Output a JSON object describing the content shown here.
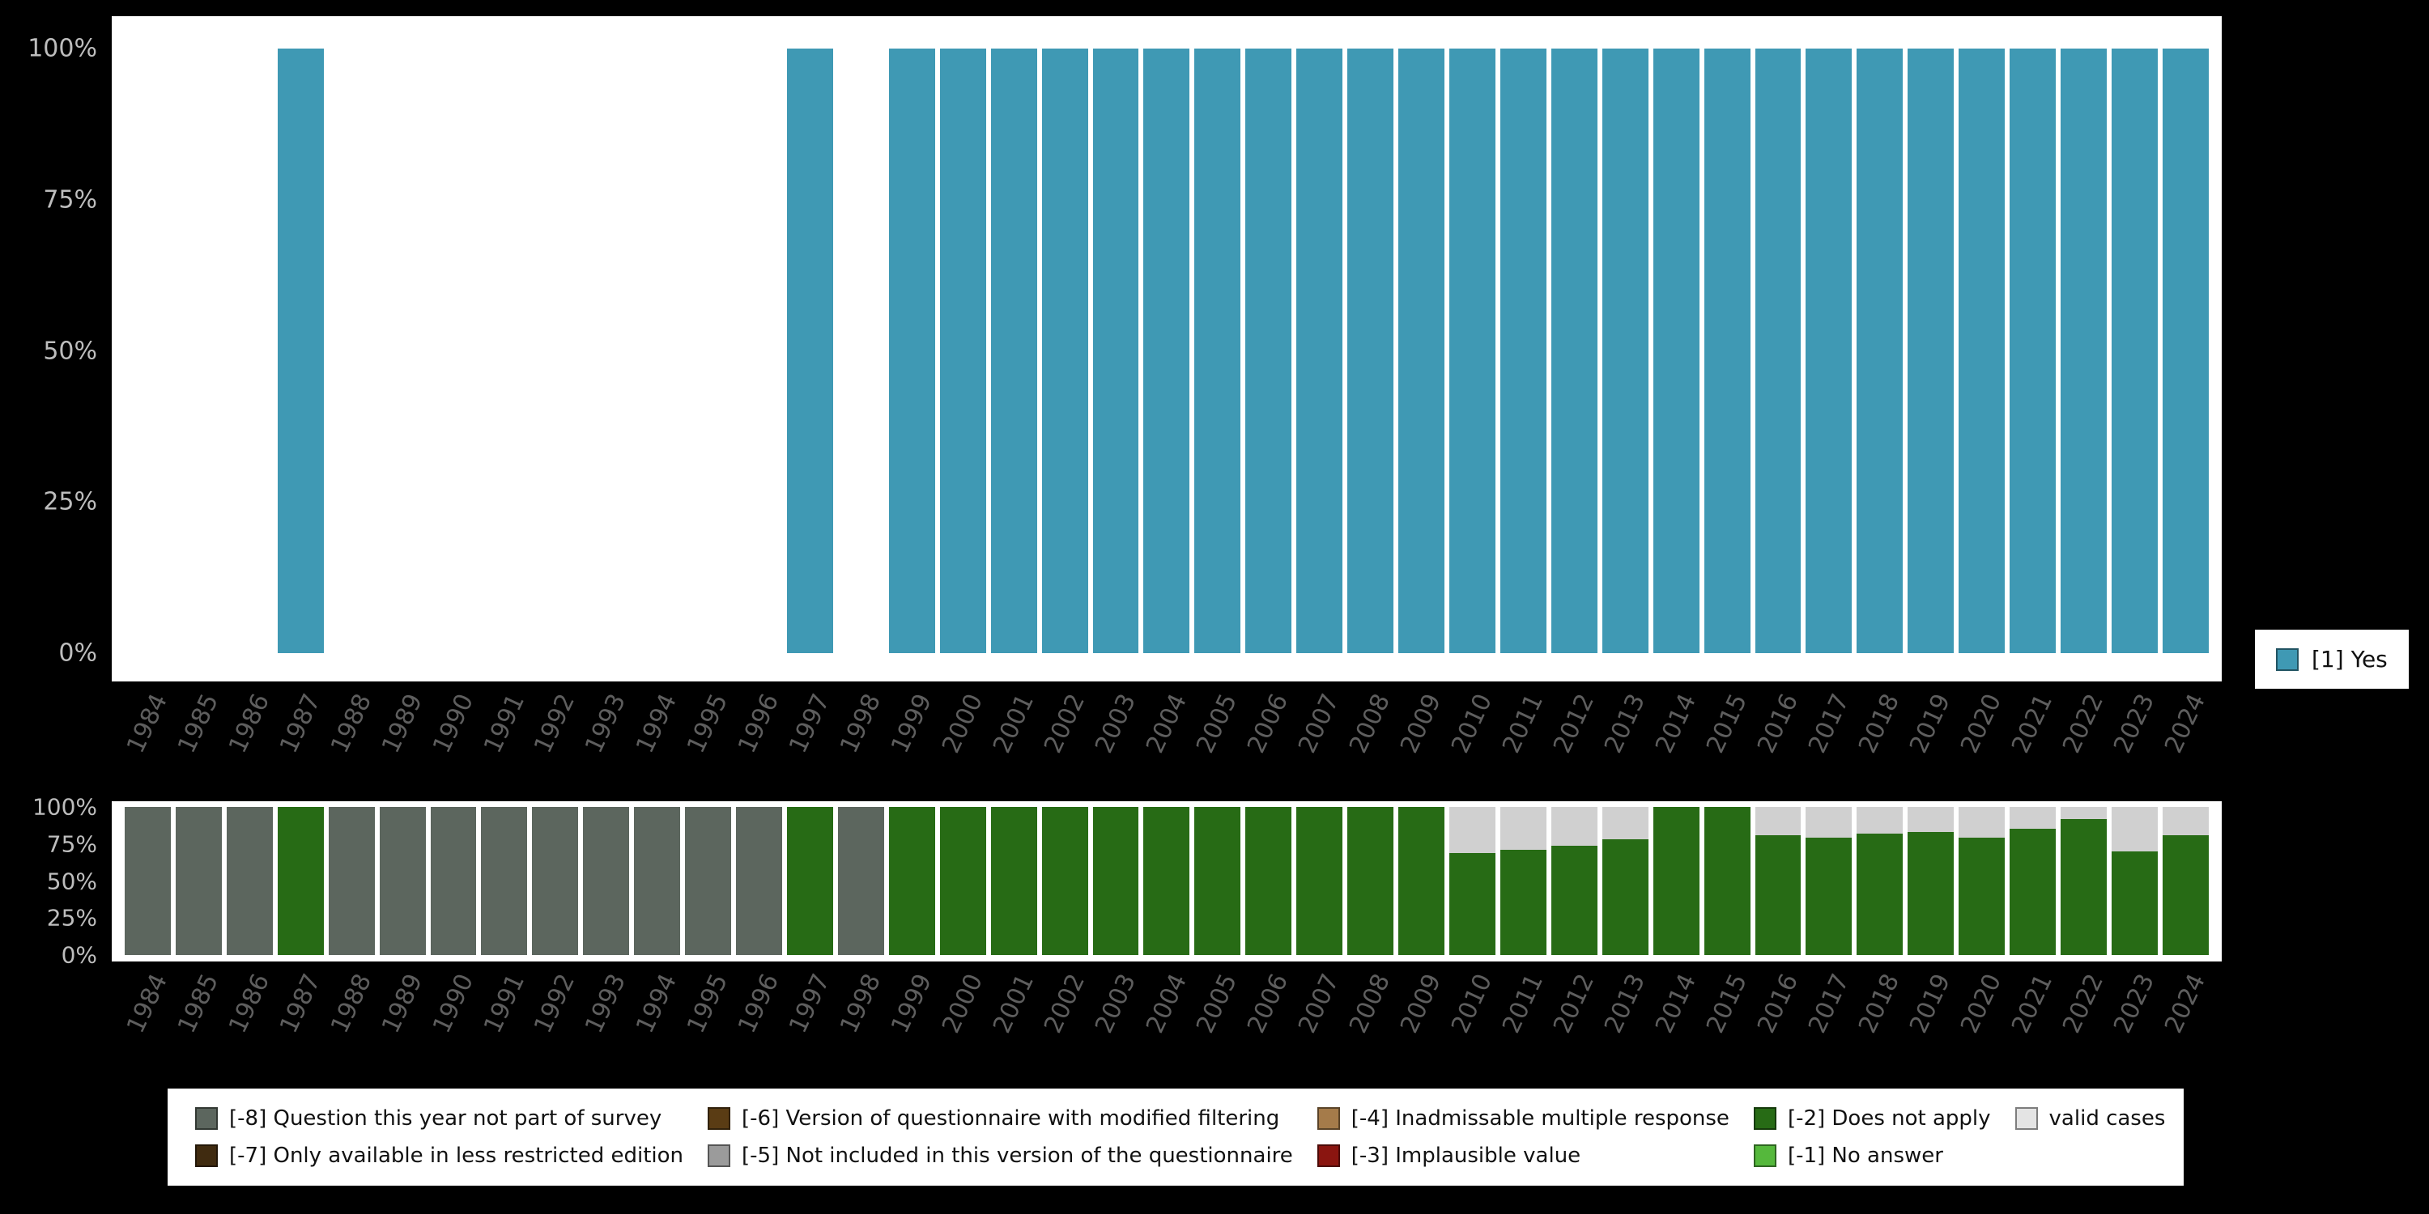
{
  "page": {
    "background": "#000000",
    "panel_background": "#ffffff",
    "axis_text_color": "#bdbdbd",
    "year_text_color": "#5e5e5e"
  },
  "top_legend": {
    "position": "right",
    "items": [
      {
        "label": "[1] Yes",
        "color": "#3f99b4"
      }
    ]
  },
  "bottom_legend": {
    "position": "bottom",
    "items": [
      {
        "label": "[-8] Question this year not part of survey",
        "color": "#5c665e"
      },
      {
        "label": "[-7] Only available in less restricted edition",
        "color": "#402b10"
      },
      {
        "label": "[-6] Version of questionnaire with modified filtering",
        "color": "#5a3c14"
      },
      {
        "label": "[-5] Not included in this version of the questionnaire",
        "color": "#9b9b9b"
      },
      {
        "label": "[-4] Inadmissable multiple response",
        "color": "#a57b4a"
      },
      {
        "label": "[-3] Implausible value",
        "color": "#8a1510"
      },
      {
        "label": "[-2] Does not apply",
        "color": "#276b15"
      },
      {
        "label": "[-1] No answer",
        "color": "#55b83c"
      },
      {
        "label": "valid cases",
        "color": "#e4e4e4"
      }
    ]
  },
  "chart_data": [
    {
      "type": "bar",
      "stacked": true,
      "title": "",
      "xlabel": "",
      "ylabel": "",
      "ylim": [
        0,
        100
      ],
      "grid": false,
      "legend_position": "right",
      "yticks": [
        "100%",
        "75%",
        "50%",
        "25%",
        "0%"
      ],
      "x": [
        1984,
        1985,
        1986,
        1987,
        1988,
        1989,
        1990,
        1991,
        1992,
        1993,
        1994,
        1995,
        1996,
        1997,
        1998,
        1999,
        2000,
        2001,
        2002,
        2003,
        2004,
        2005,
        2006,
        2007,
        2008,
        2009,
        2010,
        2011,
        2012,
        2013,
        2014,
        2015,
        2016,
        2017,
        2018,
        2019,
        2020,
        2021,
        2022,
        2023,
        2024
      ],
      "series": [
        {
          "name": "[1] Yes",
          "color": "#3f99b4",
          "values": [
            0,
            0,
            0,
            100,
            0,
            0,
            0,
            0,
            0,
            0,
            0,
            0,
            0,
            100,
            0,
            100,
            100,
            100,
            100,
            100,
            100,
            100,
            100,
            100,
            100,
            100,
            100,
            100,
            100,
            100,
            100,
            100,
            100,
            100,
            100,
            100,
            100,
            100,
            100,
            100,
            100
          ]
        }
      ]
    },
    {
      "type": "bar",
      "stacked": true,
      "title": "",
      "xlabel": "",
      "ylabel": "",
      "ylim": [
        0,
        100
      ],
      "grid": false,
      "legend_position": "bottom",
      "yticks": [
        "100%",
        "75%",
        "50%",
        "25%",
        "0%"
      ],
      "x": [
        1984,
        1985,
        1986,
        1987,
        1988,
        1989,
        1990,
        1991,
        1992,
        1993,
        1994,
        1995,
        1996,
        1997,
        1998,
        1999,
        2000,
        2001,
        2002,
        2003,
        2004,
        2005,
        2006,
        2007,
        2008,
        2009,
        2010,
        2011,
        2012,
        2013,
        2014,
        2015,
        2016,
        2017,
        2018,
        2019,
        2020,
        2021,
        2022,
        2023,
        2024
      ],
      "series": [
        {
          "name": "[-8] Question this year not part of survey",
          "color": "#5c665e",
          "values": [
            100,
            100,
            100,
            0,
            100,
            100,
            100,
            100,
            100,
            100,
            100,
            100,
            100,
            0,
            100,
            0,
            0,
            0,
            0,
            0,
            0,
            0,
            0,
            0,
            0,
            0,
            0,
            0,
            0,
            0,
            0,
            0,
            0,
            0,
            0,
            0,
            0,
            0,
            0,
            0,
            0
          ]
        },
        {
          "name": "[-2] Does not apply",
          "color": "#276b15",
          "values": [
            0,
            0,
            0,
            100,
            0,
            0,
            0,
            0,
            0,
            0,
            0,
            0,
            0,
            100,
            0,
            100,
            100,
            100,
            100,
            100,
            100,
            100,
            100,
            100,
            100,
            100,
            69,
            71,
            74,
            78,
            100,
            100,
            81,
            79,
            82,
            83,
            79,
            85,
            92,
            70,
            81
          ]
        },
        {
          "name": "valid cases",
          "color": "#d0d0d0",
          "values": [
            0,
            0,
            0,
            0,
            0,
            0,
            0,
            0,
            0,
            0,
            0,
            0,
            0,
            0,
            0,
            0,
            0,
            0,
            0,
            0,
            0,
            0,
            0,
            0,
            0,
            0,
            31,
            29,
            26,
            22,
            0,
            0,
            19,
            21,
            18,
            17,
            21,
            15,
            8,
            30,
            19
          ]
        }
      ]
    }
  ]
}
